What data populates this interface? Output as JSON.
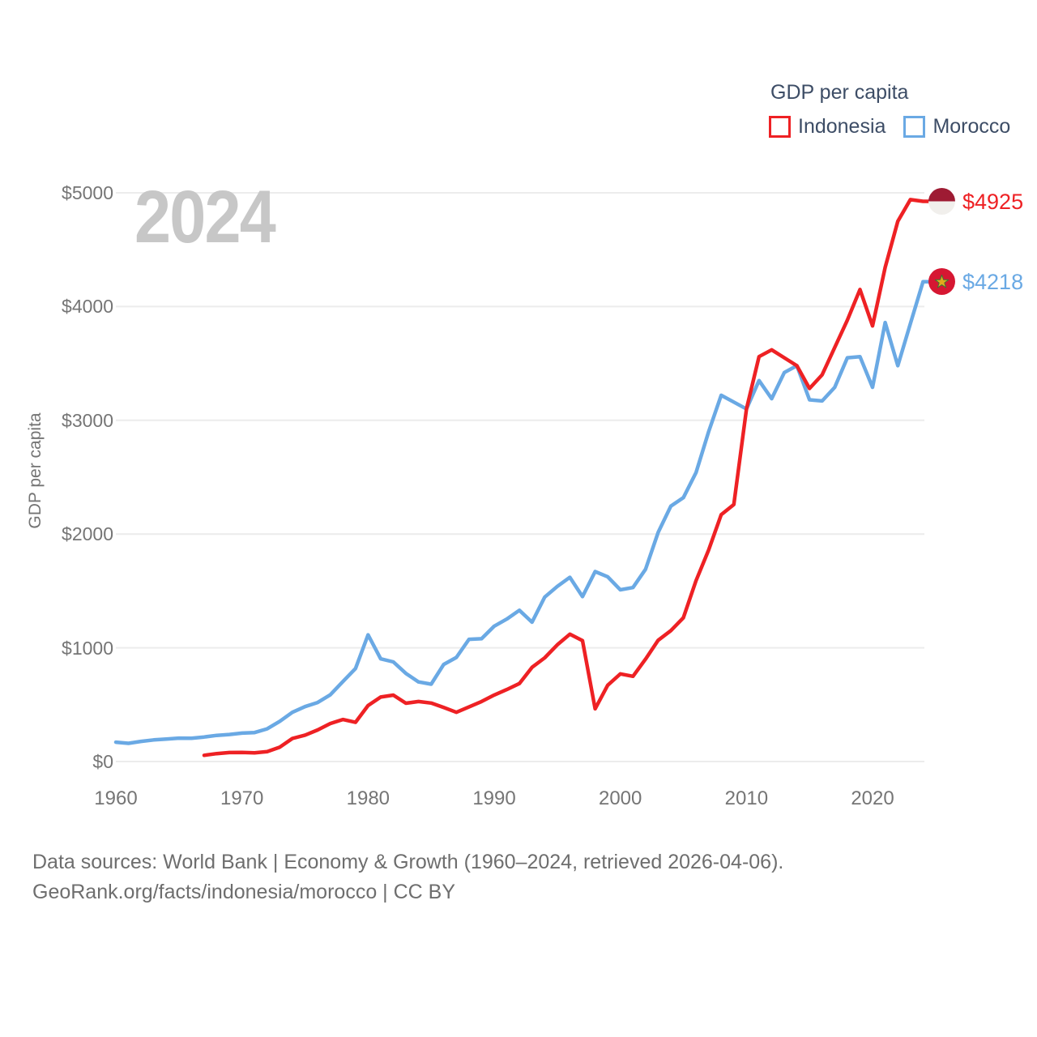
{
  "watermark": "2024",
  "legend": {
    "title": "GDP per capita",
    "items": [
      {
        "label": "Indonesia",
        "color": "#ee2124"
      },
      {
        "label": "Morocco",
        "color": "#6aa9e4"
      }
    ]
  },
  "y_axis_title": "GDP per capita",
  "end_labels": [
    {
      "series": "Indonesia",
      "value_label": "$4925",
      "flag": "indonesia-flag",
      "color": "#ee2124"
    },
    {
      "series": "Morocco",
      "value_label": "$4218",
      "flag": "morocco-flag",
      "color": "#6aa9e4"
    }
  ],
  "footer": {
    "line1": "Data sources: World Bank | Economy & Growth (1960–2024, retrieved 2026-04-06).",
    "line2": "GeoRank.org/facts/indonesia/morocco | CC BY"
  },
  "colors": {
    "indonesia_line": "#ee2124",
    "morocco_line": "#6aa9e4",
    "gridline": "#ececec",
    "axis_text": "#757575",
    "legend_text": "#3d4d66",
    "watermark": "#c7c7c7",
    "indonesia_flag_top": "#9e1b33",
    "indonesia_flag_bottom": "#f1efec",
    "morocco_flag_red": "#d61732",
    "morocco_flag_star": "#e2a91c"
  },
  "chart_data": {
    "type": "line",
    "title": "GDP per capita",
    "ylabel": "GDP per capita",
    "xlim": [
      1960,
      2024
    ],
    "ylim": [
      0,
      5000
    ],
    "grid": true,
    "legend_position": "top-right",
    "x_ticks": [
      1960,
      1970,
      1980,
      1990,
      2000,
      2010,
      2020
    ],
    "y_ticks": [
      {
        "value": 0,
        "label": "$0"
      },
      {
        "value": 1000,
        "label": "$1000"
      },
      {
        "value": 2000,
        "label": "$2000"
      },
      {
        "value": 3000,
        "label": "$3000"
      },
      {
        "value": 4000,
        "label": "$4000"
      },
      {
        "value": 5000,
        "label": "$5000"
      }
    ],
    "series": [
      {
        "name": "Indonesia",
        "color": "#ee2124",
        "start_year": 1967,
        "end_value_label": "$4925",
        "values": [
          55,
          70,
          79,
          80,
          76,
          87,
          127,
          203,
          232,
          278,
          334,
          370,
          345,
          492,
          567,
          584,
          513,
          528,
          514,
          475,
          433,
          480,
          528,
          585,
          633,
          686,
          828,
          912,
          1026,
          1120,
          1063,
          464,
          671,
          771,
          749,
          900,
          1066,
          1151,
          1264,
          1590,
          1860,
          2170,
          2260,
          3100,
          3560,
          3620,
          3550,
          3480,
          3280,
          3400,
          3640,
          3880,
          4150,
          3830,
          4345,
          4750,
          4940,
          4925
        ]
      },
      {
        "name": "Morocco",
        "color": "#6aa9e4",
        "start_year": 1960,
        "end_value_label": "$4218",
        "values": [
          170,
          160,
          177,
          190,
          198,
          206,
          205,
          216,
          230,
          238,
          250,
          255,
          288,
          354,
          433,
          483,
          519,
          586,
          703,
          818,
          1114,
          903,
          876,
          775,
          700,
          680,
          854,
          915,
          1075,
          1080,
          1190,
          1253,
          1330,
          1225,
          1445,
          1540,
          1620,
          1450,
          1670,
          1625,
          1510,
          1530,
          1690,
          2015,
          2245,
          2320,
          2540,
          2900,
          3220,
          3160,
          3100,
          3350,
          3190,
          3420,
          3480,
          3180,
          3170,
          3290,
          3550,
          3560,
          3290,
          3860,
          3480,
          3850,
          4218
        ]
      }
    ]
  }
}
